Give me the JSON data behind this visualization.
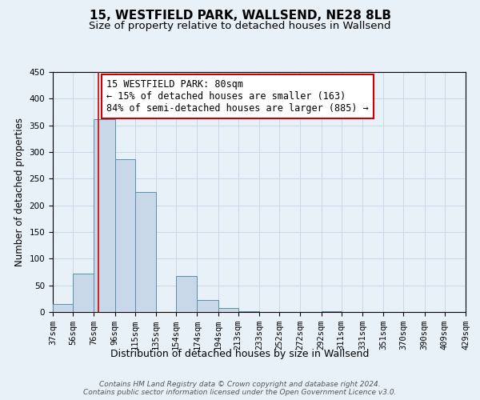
{
  "title": "15, WESTFIELD PARK, WALLSEND, NE28 8LB",
  "subtitle": "Size of property relative to detached houses in Wallsend",
  "xlabel": "Distribution of detached houses by size in Wallsend",
  "ylabel": "Number of detached properties",
  "bin_edges": [
    37,
    56,
    76,
    96,
    115,
    135,
    154,
    174,
    194,
    213,
    233,
    252,
    272,
    292,
    311,
    331,
    351,
    370,
    390,
    409,
    429
  ],
  "bar_heights": [
    15,
    72,
    362,
    287,
    225,
    0,
    67,
    22,
    7,
    2,
    0,
    0,
    0,
    2,
    0,
    0,
    0,
    0,
    0,
    0
  ],
  "bar_color": "#c8d8e8",
  "bar_edge_color": "#5b8fa8",
  "bar_edge_width": 0.7,
  "vline_x": 80,
  "vline_color": "#cc0000",
  "vline_linewidth": 1.2,
  "ylim": [
    0,
    450
  ],
  "yticks": [
    0,
    50,
    100,
    150,
    200,
    250,
    300,
    350,
    400,
    450
  ],
  "annotation_text": "15 WESTFIELD PARK: 80sqm\n← 15% of detached houses are smaller (163)\n84% of semi-detached houses are larger (885) →",
  "annotation_box_color": "#ffffff",
  "annotation_box_edge_color": "#cc0000",
  "grid_color": "#c8d8e8",
  "background_color": "#e8f0f8",
  "footer_text": "Contains HM Land Registry data © Crown copyright and database right 2024.\nContains public sector information licensed under the Open Government Licence v3.0.",
  "title_fontsize": 11,
  "subtitle_fontsize": 9.5,
  "xlabel_fontsize": 9,
  "ylabel_fontsize": 8.5,
  "tick_fontsize": 7.5,
  "annotation_fontsize": 8.5,
  "footer_fontsize": 6.5
}
